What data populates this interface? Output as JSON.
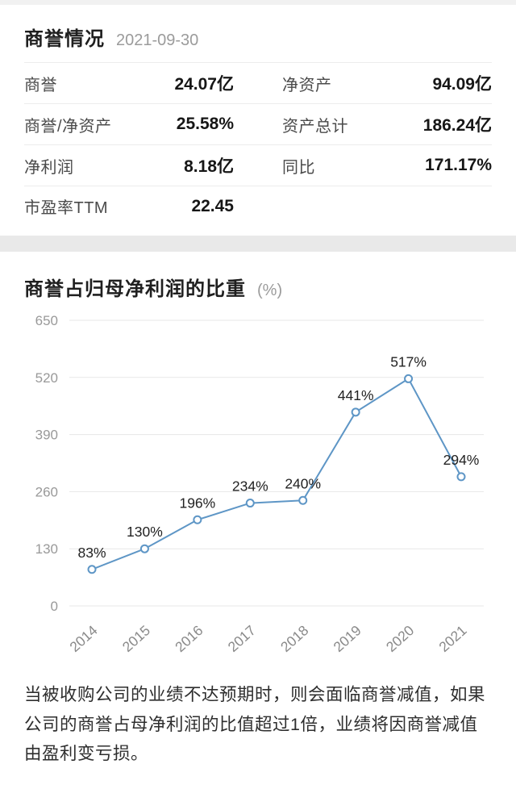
{
  "stats": {
    "title": "商誉情况",
    "date": "2021-09-30",
    "items": [
      {
        "label": "商誉",
        "value": "24.07亿"
      },
      {
        "label": "净资产",
        "value": "94.09亿"
      },
      {
        "label": "商誉/净资产",
        "value": "25.58%"
      },
      {
        "label": "资产总计",
        "value": "186.24亿"
      },
      {
        "label": "净利润",
        "value": "8.18亿"
      },
      {
        "label": "同比",
        "value": "171.17%"
      },
      {
        "label": "市盈率TTM",
        "value": "22.45"
      }
    ]
  },
  "chart_data": {
    "type": "line",
    "title": "商誉占归母净利润的比重",
    "unit_label": "(%)",
    "categories": [
      "2014",
      "2015",
      "2016",
      "2017",
      "2018",
      "2019",
      "2020",
      "2021"
    ],
    "values": [
      83,
      130,
      196,
      234,
      240,
      441,
      517,
      294
    ],
    "point_labels": [
      "83%",
      "130%",
      "196%",
      "234%",
      "240%",
      "441%",
      "517%",
      "294%"
    ],
    "y_ticks": [
      0,
      130,
      260,
      390,
      520,
      650
    ],
    "ylim": [
      0,
      650
    ],
    "grid": true,
    "legend": "none",
    "line_color": "#5e96c6",
    "marker": "open-circle",
    "grid_color": "#e7e7e7",
    "tick_color": "#999999",
    "label_color": "#222222"
  },
  "footnote": "当被收购公司的业绩不达预期时，则会面临商誉减值，如果公司的商誉占母净利润的比值超过1倍，业绩将因商誉减值由盈利变亏损。"
}
